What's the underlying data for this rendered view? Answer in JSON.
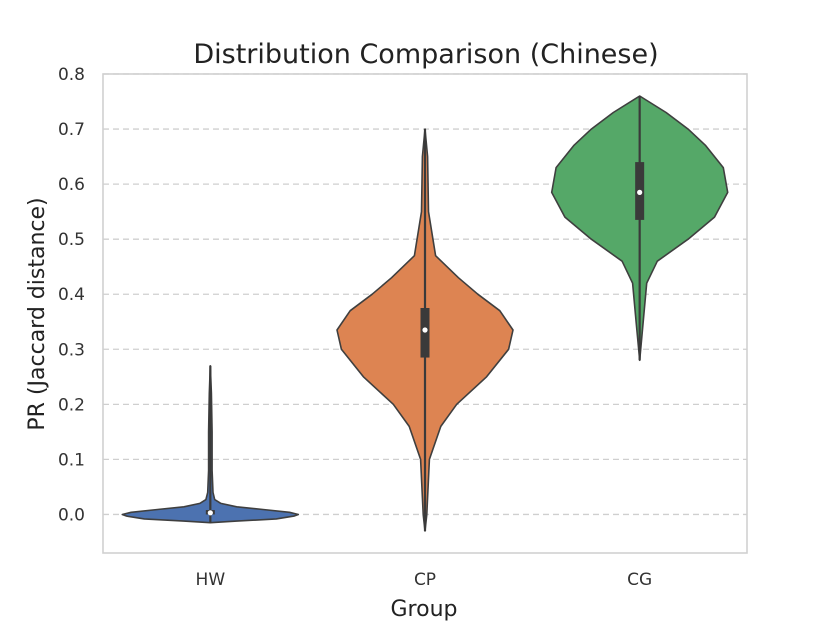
{
  "chart_data": {
    "type": "violin",
    "title": "Distribution Comparison (Chinese)",
    "xlabel": "Group",
    "ylabel": "PR (Jaccard distance)",
    "categories": [
      "HW",
      "CP",
      "CG"
    ],
    "ylim": [
      -0.07,
      0.8
    ],
    "yticks": [
      0.0,
      0.1,
      0.2,
      0.3,
      0.4,
      0.5,
      0.6,
      0.7,
      0.8
    ],
    "grid": true,
    "grid_axis": "y",
    "series": [
      {
        "category": "HW",
        "color": "#4c72b0",
        "min": -0.015,
        "q1": 0.0,
        "median": 0.003,
        "q3": 0.008,
        "max": 0.27,
        "density_profile": [
          [
            -0.015,
            0.0
          ],
          [
            -0.012,
            0.3
          ],
          [
            -0.008,
            0.75
          ],
          [
            -0.003,
            0.95
          ],
          [
            0.0,
            1.0
          ],
          [
            0.004,
            0.9
          ],
          [
            0.009,
            0.6
          ],
          [
            0.014,
            0.3
          ],
          [
            0.02,
            0.12
          ],
          [
            0.027,
            0.05
          ],
          [
            0.04,
            0.03
          ],
          [
            0.08,
            0.02
          ],
          [
            0.15,
            0.02
          ],
          [
            0.22,
            0.012
          ],
          [
            0.27,
            0.0
          ]
        ]
      },
      {
        "category": "CP",
        "color": "#dd8452",
        "min": -0.03,
        "q1": 0.285,
        "median": 0.335,
        "q3": 0.375,
        "max": 0.7,
        "density_profile": [
          [
            -0.03,
            0.0
          ],
          [
            0.0,
            0.02
          ],
          [
            0.1,
            0.05
          ],
          [
            0.16,
            0.18
          ],
          [
            0.2,
            0.36
          ],
          [
            0.25,
            0.7
          ],
          [
            0.3,
            0.95
          ],
          [
            0.335,
            1.0
          ],
          [
            0.37,
            0.85
          ],
          [
            0.4,
            0.6
          ],
          [
            0.43,
            0.38
          ],
          [
            0.47,
            0.12
          ],
          [
            0.55,
            0.04
          ],
          [
            0.65,
            0.03
          ],
          [
            0.7,
            0.0
          ]
        ]
      },
      {
        "category": "CG",
        "color": "#55a868",
        "min": 0.28,
        "q1": 0.535,
        "median": 0.585,
        "q3": 0.64,
        "max": 0.76,
        "density_profile": [
          [
            0.28,
            0.0
          ],
          [
            0.35,
            0.04
          ],
          [
            0.42,
            0.08
          ],
          [
            0.46,
            0.2
          ],
          [
            0.5,
            0.55
          ],
          [
            0.54,
            0.85
          ],
          [
            0.585,
            1.0
          ],
          [
            0.63,
            0.95
          ],
          [
            0.67,
            0.75
          ],
          [
            0.7,
            0.55
          ],
          [
            0.73,
            0.3
          ],
          [
            0.76,
            0.0
          ]
        ]
      }
    ]
  },
  "colors": {
    "hw": "#4c72b0",
    "cp": "#dd8452",
    "cg": "#55a868",
    "box": "#3a3a3a",
    "median_dot": "#ffffff"
  }
}
